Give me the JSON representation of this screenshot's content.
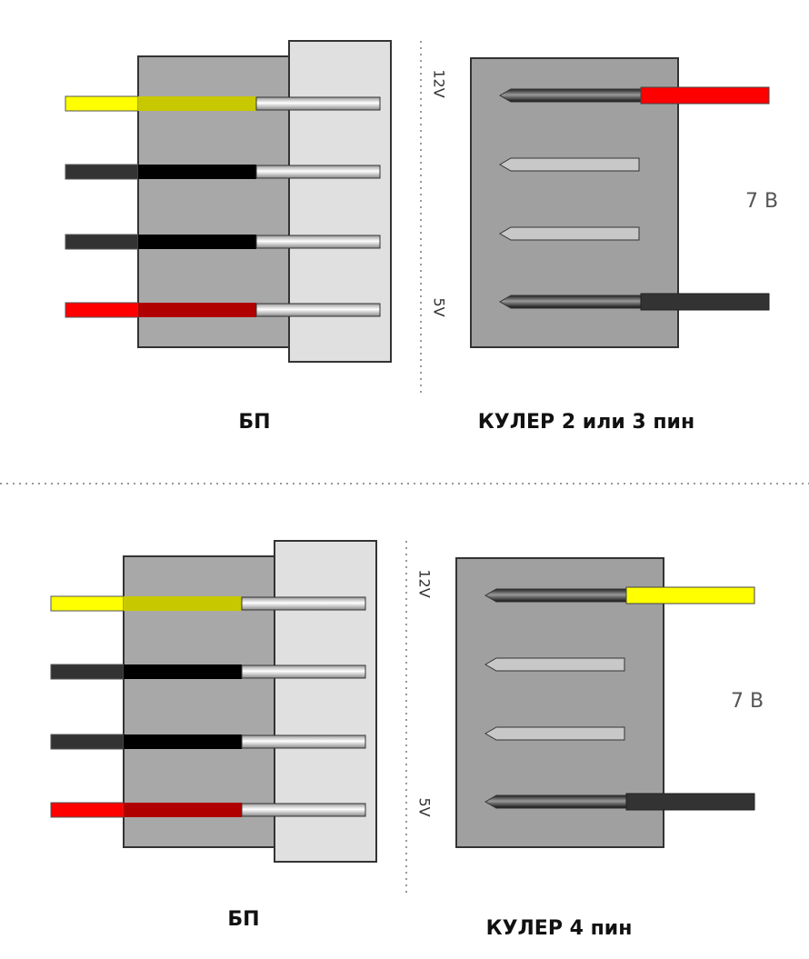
{
  "panels": [
    {
      "top_voltage": "12V",
      "bottom_voltage": "5V",
      "psu_label": "БП",
      "cooler_label": "КУЛЕР 2 или 3 пин",
      "output_voltage": "7 В"
    },
    {
      "top_voltage": "12V",
      "bottom_voltage": "5V",
      "psu_label": "БП",
      "cooler_label": "КУЛЕР 4 пин",
      "output_voltage": "7 В"
    }
  ]
}
